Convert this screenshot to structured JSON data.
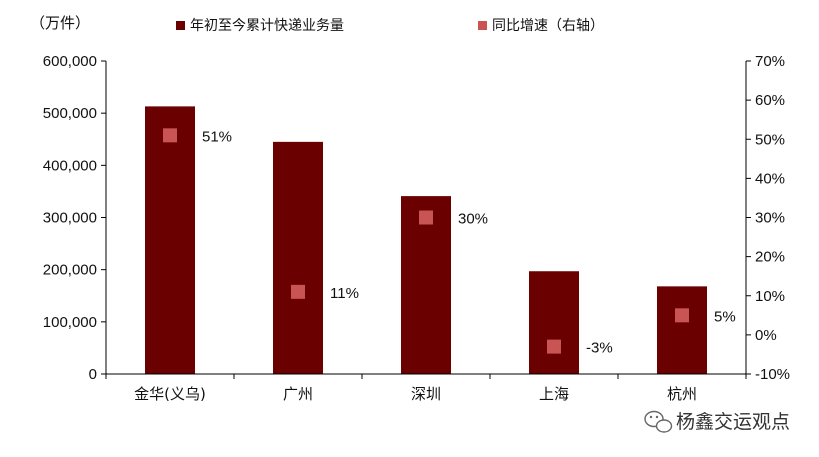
{
  "chart_data": {
    "type": "bar",
    "unit_label": "（万件）",
    "categories": [
      "金华(义乌)",
      "广州",
      "深圳",
      "上海",
      "杭州"
    ],
    "series": [
      {
        "name": "年初至今累计快递业务量",
        "axis": "left",
        "mark": "bar",
        "values": [
          513000,
          445000,
          341000,
          197000,
          168000
        ]
      },
      {
        "name": "同比增速（右轴）",
        "axis": "right",
        "mark": "square",
        "values": [
          51,
          11,
          30,
          -3,
          5
        ],
        "labels": [
          "51%",
          "11%",
          "30%",
          "-3%",
          "5%"
        ]
      }
    ],
    "y_left": {
      "range": [
        0,
        600000
      ],
      "ticks": [
        0,
        100000,
        200000,
        300000,
        400000,
        500000,
        600000
      ],
      "tick_labels": [
        "0",
        "100,000",
        "200,000",
        "300,000",
        "400,000",
        "500,000",
        "600,000"
      ]
    },
    "y_right": {
      "range": [
        -10,
        70
      ],
      "ticks": [
        -10,
        0,
        10,
        20,
        30,
        40,
        50,
        60,
        70
      ],
      "tick_labels": [
        "-10%",
        "0%",
        "10%",
        "20%",
        "30%",
        "40%",
        "50%",
        "60%",
        "70%"
      ]
    },
    "grid": false,
    "legend_position": "top",
    "colors": {
      "bar": "#6b0000",
      "marker": "#c95454",
      "axis": "#000000"
    }
  },
  "watermark": {
    "text": "杨鑫交运观点",
    "icon": "wechat-icon"
  }
}
